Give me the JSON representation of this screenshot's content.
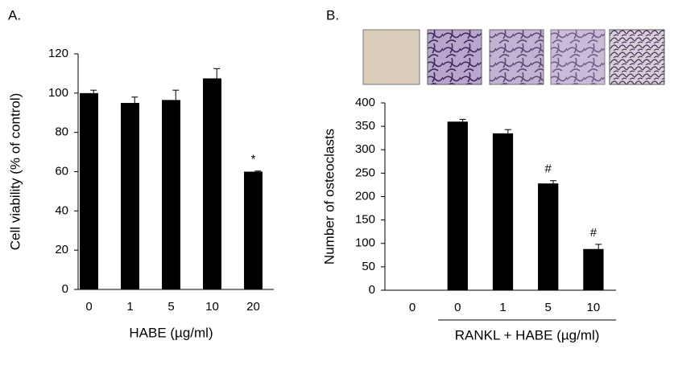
{
  "chart_data": [
    {
      "type": "bar",
      "panel": "A.",
      "xlabel": "HABE (µg/ml)",
      "ylabel": "Cell viability (% of control)",
      "categories": [
        "0",
        "1",
        "5",
        "10",
        "20"
      ],
      "values": [
        100,
        95,
        96.5,
        107.5,
        60
      ],
      "errors": [
        1.5,
        3,
        5,
        5,
        0.3
      ],
      "significance": [
        null,
        null,
        null,
        null,
        "*"
      ],
      "color": "#000000",
      "ylim": [
        0,
        120
      ],
      "yticks": [
        0,
        20,
        40,
        60,
        80,
        100,
        120
      ]
    },
    {
      "type": "bar",
      "panel": "B.",
      "xlabel": "RANKL + HABE (µg/ml)",
      "ylabel": "Number of osteoclasts",
      "categories": [
        "0",
        "0",
        "1",
        "5",
        "10"
      ],
      "values": [
        0,
        360,
        335,
        228,
        88
      ],
      "errors": [
        null,
        5,
        8,
        6,
        10
      ],
      "significance": [
        null,
        null,
        null,
        "#",
        "#"
      ],
      "color": "#000000",
      "ylim": [
        0,
        400
      ],
      "yticks": [
        0,
        50,
        100,
        150,
        200,
        250,
        300,
        350,
        400
      ]
    }
  ]
}
